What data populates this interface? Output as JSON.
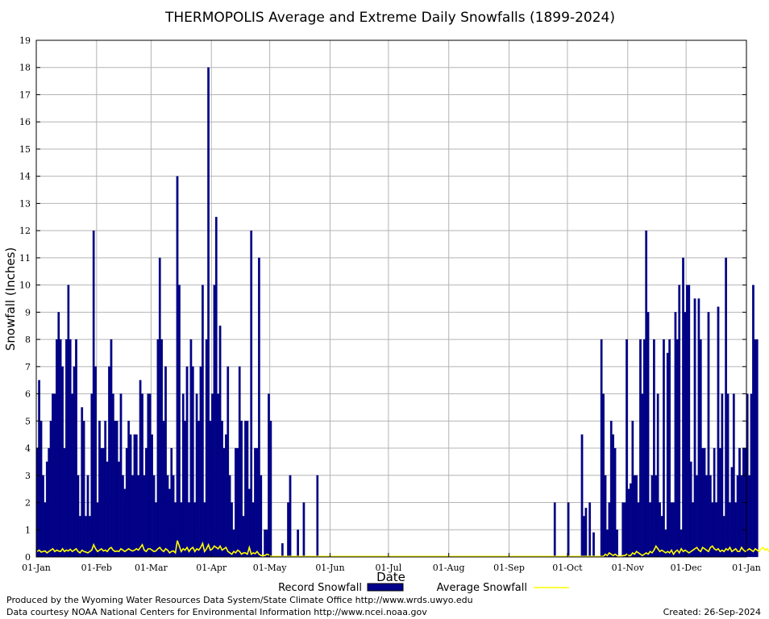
{
  "chart_data": {
    "type": "bar",
    "title": "THERMOPOLIS Average and Extreme Daily Snowfalls (1899-2024)",
    "xlabel": "Date",
    "ylabel": "Snowfall (Inches)",
    "ylim": [
      0,
      19
    ],
    "y_ticks": [
      0,
      1,
      2,
      3,
      4,
      5,
      6,
      7,
      8,
      9,
      10,
      11,
      12,
      13,
      14,
      15,
      16,
      17,
      18,
      19
    ],
    "x_ticks": [
      {
        "label": "01-Jan",
        "day": 0
      },
      {
        "label": "01-Feb",
        "day": 31
      },
      {
        "label": "01-Mar",
        "day": 59
      },
      {
        "label": "01-Apr",
        "day": 90
      },
      {
        "label": "01-May",
        "day": 120
      },
      {
        "label": "01-Jun",
        "day": 151
      },
      {
        "label": "01-Jul",
        "day": 181
      },
      {
        "label": "01-Aug",
        "day": 212
      },
      {
        "label": "01-Sep",
        "day": 243
      },
      {
        "label": "01-Oct",
        "day": 273
      },
      {
        "label": "01-Nov",
        "day": 304
      },
      {
        "label": "01-Dec",
        "day": 334
      },
      {
        "label": "01-Jan",
        "day": 365
      }
    ],
    "grid": true,
    "legend_placement": "bottom",
    "series": [
      {
        "name": "Record Snowfall",
        "style": "bar",
        "color": "#00008b",
        "values": [
          4,
          6.5,
          5,
          3,
          2,
          3.5,
          4,
          5,
          6,
          6,
          8,
          9,
          8,
          7,
          4,
          8,
          10,
          8,
          6,
          7,
          8,
          3,
          1.5,
          5.5,
          5,
          1.5,
          3,
          1.5,
          6,
          12,
          7,
          2,
          5,
          4,
          4,
          5,
          3.5,
          7,
          8,
          6,
          5,
          5,
          3.5,
          6,
          3,
          2.5,
          4,
          5,
          4.5,
          3,
          4.5,
          4.5,
          3,
          6.5,
          6,
          3,
          4,
          6,
          6,
          4.5,
          3,
          2,
          8,
          11,
          8,
          5,
          7,
          3,
          2.5,
          4,
          3,
          2,
          14,
          10,
          2,
          6,
          5,
          7,
          2,
          8,
          7,
          2,
          6,
          5,
          7,
          10,
          2,
          8,
          18,
          5,
          6,
          10,
          12.5,
          6,
          8.5,
          5,
          4,
          4.5,
          7,
          3,
          2,
          1,
          4,
          4,
          7,
          5,
          1.5,
          5,
          5,
          2.5,
          12,
          2,
          4,
          4,
          11,
          3,
          0,
          1,
          1,
          6,
          5,
          0,
          0,
          0,
          0,
          0,
          0.5,
          0,
          0,
          2,
          3,
          0,
          0,
          0,
          1,
          0,
          0,
          2,
          0,
          0,
          0,
          0,
          0,
          0,
          3,
          0,
          0,
          0,
          0,
          0,
          0,
          0,
          0,
          0,
          0,
          0,
          0,
          0,
          0,
          0,
          0,
          0,
          0,
          0,
          0,
          0,
          0,
          0,
          0,
          0,
          0,
          0,
          0,
          0,
          0,
          0,
          0,
          0,
          0,
          0,
          0,
          0,
          0,
          0,
          0,
          0,
          0,
          0,
          0,
          0,
          0,
          0,
          0,
          0,
          0,
          0,
          0,
          0,
          0,
          0,
          0,
          0,
          0,
          0,
          0,
          0,
          0,
          0,
          0,
          0,
          0,
          0,
          0,
          0,
          0,
          0,
          0,
          0,
          0,
          0,
          0,
          0,
          0,
          0,
          0,
          0,
          0,
          0,
          0,
          0,
          0,
          0,
          0,
          0,
          0,
          0,
          0,
          0,
          0,
          0,
          0,
          0,
          0,
          0,
          0,
          0,
          0,
          0,
          0,
          0,
          0,
          0,
          0,
          0,
          0,
          0,
          0,
          0,
          0,
          0,
          0,
          0,
          0,
          0,
          0,
          0,
          2,
          0,
          0,
          0,
          0,
          0,
          0,
          2,
          0,
          0,
          0,
          0,
          0,
          0,
          4.5,
          1.5,
          1.8,
          0,
          2,
          0,
          0.9,
          0,
          0,
          0,
          8,
          6,
          3,
          1,
          2,
          5,
          4.5,
          4,
          1,
          0,
          0,
          2,
          2,
          8,
          2.5,
          2.7,
          5,
          3,
          3,
          2,
          8,
          6,
          8,
          12,
          9,
          2,
          3,
          8,
          3,
          6,
          2,
          1.5,
          8,
          1,
          7.5,
          8,
          2,
          2,
          9,
          8,
          10,
          1,
          11,
          9,
          10,
          10,
          3.5,
          2,
          9.5,
          3,
          9.5,
          8,
          4,
          4,
          3,
          9,
          3,
          2,
          4,
          2,
          9.2,
          4,
          6,
          1.5,
          11,
          6,
          2,
          3.3,
          6,
          2,
          3,
          4,
          3,
          4,
          4,
          6,
          3,
          6,
          10,
          8,
          8
        ]
      },
      {
        "name": "Average Snowfall",
        "style": "line",
        "color": "#ffff00",
        "values": [
          0.2,
          0.25,
          0.18,
          0.2,
          0.22,
          0.15,
          0.2,
          0.25,
          0.3,
          0.2,
          0.25,
          0.22,
          0.2,
          0.3,
          0.2,
          0.25,
          0.22,
          0.28,
          0.2,
          0.25,
          0.3,
          0.2,
          0.15,
          0.25,
          0.2,
          0.18,
          0.15,
          0.2,
          0.25,
          0.45,
          0.3,
          0.2,
          0.25,
          0.3,
          0.22,
          0.25,
          0.2,
          0.3,
          0.35,
          0.25,
          0.2,
          0.22,
          0.2,
          0.3,
          0.25,
          0.2,
          0.25,
          0.3,
          0.25,
          0.22,
          0.25,
          0.3,
          0.25,
          0.35,
          0.45,
          0.25,
          0.2,
          0.3,
          0.3,
          0.25,
          0.2,
          0.22,
          0.3,
          0.35,
          0.25,
          0.2,
          0.3,
          0.25,
          0.15,
          0.2,
          0.22,
          0.15,
          0.6,
          0.4,
          0.2,
          0.3,
          0.25,
          0.35,
          0.2,
          0.3,
          0.35,
          0.2,
          0.3,
          0.25,
          0.35,
          0.5,
          0.2,
          0.3,
          0.45,
          0.25,
          0.3,
          0.4,
          0.35,
          0.3,
          0.4,
          0.25,
          0.3,
          0.35,
          0.2,
          0.15,
          0.1,
          0.2,
          0.15,
          0.25,
          0.2,
          0.1,
          0.15,
          0.15,
          0.1,
          0.35,
          0.1,
          0.15,
          0.12,
          0.2,
          0.1,
          0.05,
          0.05,
          0.05,
          0.1,
          0.08,
          0.02,
          0.02,
          0.02,
          0.02,
          0.02,
          0.02,
          0.02,
          0.02,
          0.02,
          0.02,
          0.02,
          0.02,
          0.02,
          0.02,
          0.02,
          0.02,
          0.02,
          0.02,
          0.02,
          0.02,
          0.02,
          0.02,
          0.02,
          0.02,
          0.02,
          0.02,
          0.02,
          0.02,
          0.02,
          0.02,
          0.02,
          0.02,
          0.02,
          0.02,
          0.02,
          0.02,
          0.02,
          0.02,
          0.02,
          0.02,
          0.02,
          0.02,
          0.02,
          0.02,
          0.02,
          0.02,
          0.02,
          0.02,
          0.02,
          0.02,
          0.02,
          0.02,
          0.02,
          0.02,
          0.02,
          0.02,
          0.02,
          0.02,
          0.02,
          0.02,
          0.02,
          0.02,
          0.02,
          0.02,
          0.02,
          0.02,
          0.02,
          0.02,
          0.02,
          0.02,
          0.02,
          0.02,
          0.02,
          0.02,
          0.02,
          0.02,
          0.02,
          0.02,
          0.02,
          0.02,
          0.02,
          0.02,
          0.02,
          0.02,
          0.02,
          0.02,
          0.02,
          0.02,
          0.02,
          0.02,
          0.02,
          0.02,
          0.02,
          0.02,
          0.02,
          0.02,
          0.02,
          0.02,
          0.02,
          0.02,
          0.02,
          0.02,
          0.02,
          0.02,
          0.02,
          0.02,
          0.02,
          0.02,
          0.02,
          0.02,
          0.02,
          0.02,
          0.02,
          0.02,
          0.02,
          0.02,
          0.02,
          0.02,
          0.02,
          0.02,
          0.02,
          0.02,
          0.02,
          0.02,
          0.02,
          0.02,
          0.02,
          0.02,
          0.02,
          0.02,
          0.02,
          0.02,
          0.02,
          0.02,
          0.02,
          0.02,
          0.02,
          0.02,
          0.02,
          0.02,
          0.02,
          0.02,
          0.02,
          0.02,
          0.02,
          0.02,
          0.02,
          0.02,
          0.02,
          0.02,
          0.02,
          0.02,
          0.02,
          0.02,
          0.02,
          0.02,
          0.02,
          0.02,
          0.02,
          0.02,
          0.02,
          0.02,
          0.02,
          0.02,
          0.02,
          0.02,
          0.02,
          0.02,
          0.02,
          0.02,
          0.02,
          0.02,
          0.1,
          0.05,
          0.15,
          0.1,
          0.05,
          0.1,
          0.05,
          0.02,
          0.02,
          0.05,
          0.05,
          0.1,
          0.05,
          0.05,
          0.15,
          0.1,
          0.2,
          0.15,
          0.1,
          0.05,
          0.1,
          0.15,
          0.1,
          0.2,
          0.15,
          0.25,
          0.4,
          0.3,
          0.2,
          0.25,
          0.2,
          0.15,
          0.2,
          0.15,
          0.25,
          0.1,
          0.2,
          0.25,
          0.15,
          0.3,
          0.2,
          0.25,
          0.2,
          0.15,
          0.2,
          0.25,
          0.3,
          0.35,
          0.25,
          0.2,
          0.35,
          0.3,
          0.25,
          0.2,
          0.35,
          0.4,
          0.3,
          0.25,
          0.3,
          0.2,
          0.25,
          0.2,
          0.3,
          0.25,
          0.35,
          0.2,
          0.25,
          0.3,
          0.2,
          0.2,
          0.35,
          0.25,
          0.2,
          0.25,
          0.3,
          0.25,
          0.2,
          0.3,
          0.25,
          0.2,
          0.3,
          0.35,
          0.25,
          0.3,
          0.2,
          0.25
        ]
      }
    ]
  },
  "footer": {
    "produced_by": "Produced by the Wyoming Water Resources Data System/State Climate Office http://www.wrds.uwyo.edu",
    "data_courtesy": "Data courtesy NOAA National Centers for Environmental Information http://www.ncei.noaa.gov",
    "created": "Created:  26-Sep-2024"
  }
}
